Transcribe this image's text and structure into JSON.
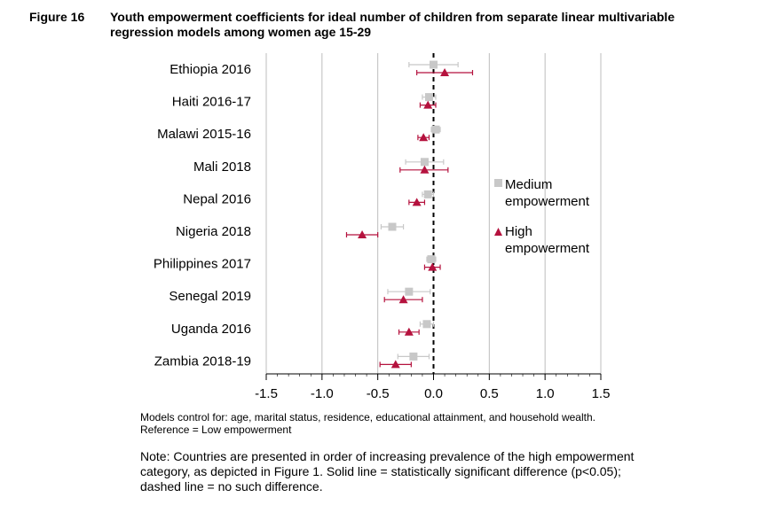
{
  "figure": {
    "label": "Figure 16",
    "title": "Youth empowerment coefficients for ideal number of children from separate linear multivariable regression models among women age 15-29"
  },
  "notes": {
    "models_line1": "Models control for: age, marital status, residence, educational attainment, and household wealth.",
    "models_line2": "Reference = Low empowerment",
    "main": "Note: Countries are presented in order of increasing prevalence of the high empowerment category, as depicted in Figure 1. Solid line = statistically significant difference (p<0.05); dashed line = no such difference."
  },
  "chart_data": {
    "type": "scatter",
    "title": "",
    "xlabel": "",
    "ylabel": "",
    "xlim": [
      -1.5,
      1.5
    ],
    "x_ticks": [
      "-1.5",
      "-1.0",
      "-0.5",
      "0.0",
      "0.5",
      "1.0",
      "1.5"
    ],
    "reference_line": 0,
    "reference_line_style": "dashed",
    "grid": true,
    "legend_position": "right",
    "categories": [
      "Ethiopia 2016",
      "Haiti 2016-17",
      "Malawi 2015-16",
      "Mali 2018",
      "Nepal 2016",
      "Nigeria 2018",
      "Philippines 2017",
      "Senegal 2019",
      "Uganda 2016",
      "Zambia 2018-19"
    ],
    "series": [
      {
        "name": "Medium empowerment",
        "marker": "square",
        "color": "#c8c8c8",
        "values": [
          0.0,
          -0.04,
          0.02,
          -0.08,
          -0.05,
          -0.37,
          -0.02,
          -0.22,
          -0.06,
          -0.18
        ],
        "ci_low": [
          -0.22,
          -0.1,
          -0.02,
          -0.25,
          -0.1,
          -0.47,
          -0.06,
          -0.41,
          -0.12,
          -0.32
        ],
        "ci_high": [
          0.22,
          0.02,
          0.06,
          0.09,
          0.0,
          -0.27,
          0.02,
          -0.03,
          0.0,
          -0.04
        ]
      },
      {
        "name": "High empowerment",
        "marker": "triangle",
        "color": "#b5123e",
        "values": [
          0.1,
          -0.05,
          -0.09,
          -0.08,
          -0.15,
          -0.64,
          -0.01,
          -0.27,
          -0.22,
          -0.34
        ],
        "ci_low": [
          -0.15,
          -0.12,
          -0.14,
          -0.3,
          -0.22,
          -0.78,
          -0.08,
          -0.44,
          -0.31,
          -0.48
        ],
        "ci_high": [
          0.35,
          0.02,
          -0.04,
          0.13,
          -0.08,
          -0.5,
          0.06,
          -0.1,
          -0.13,
          -0.2
        ]
      }
    ],
    "legend": {
      "medium_line1": "Medium",
      "medium_line2": "empowerment",
      "high_line1": "High",
      "high_line2": "empowerment"
    }
  }
}
